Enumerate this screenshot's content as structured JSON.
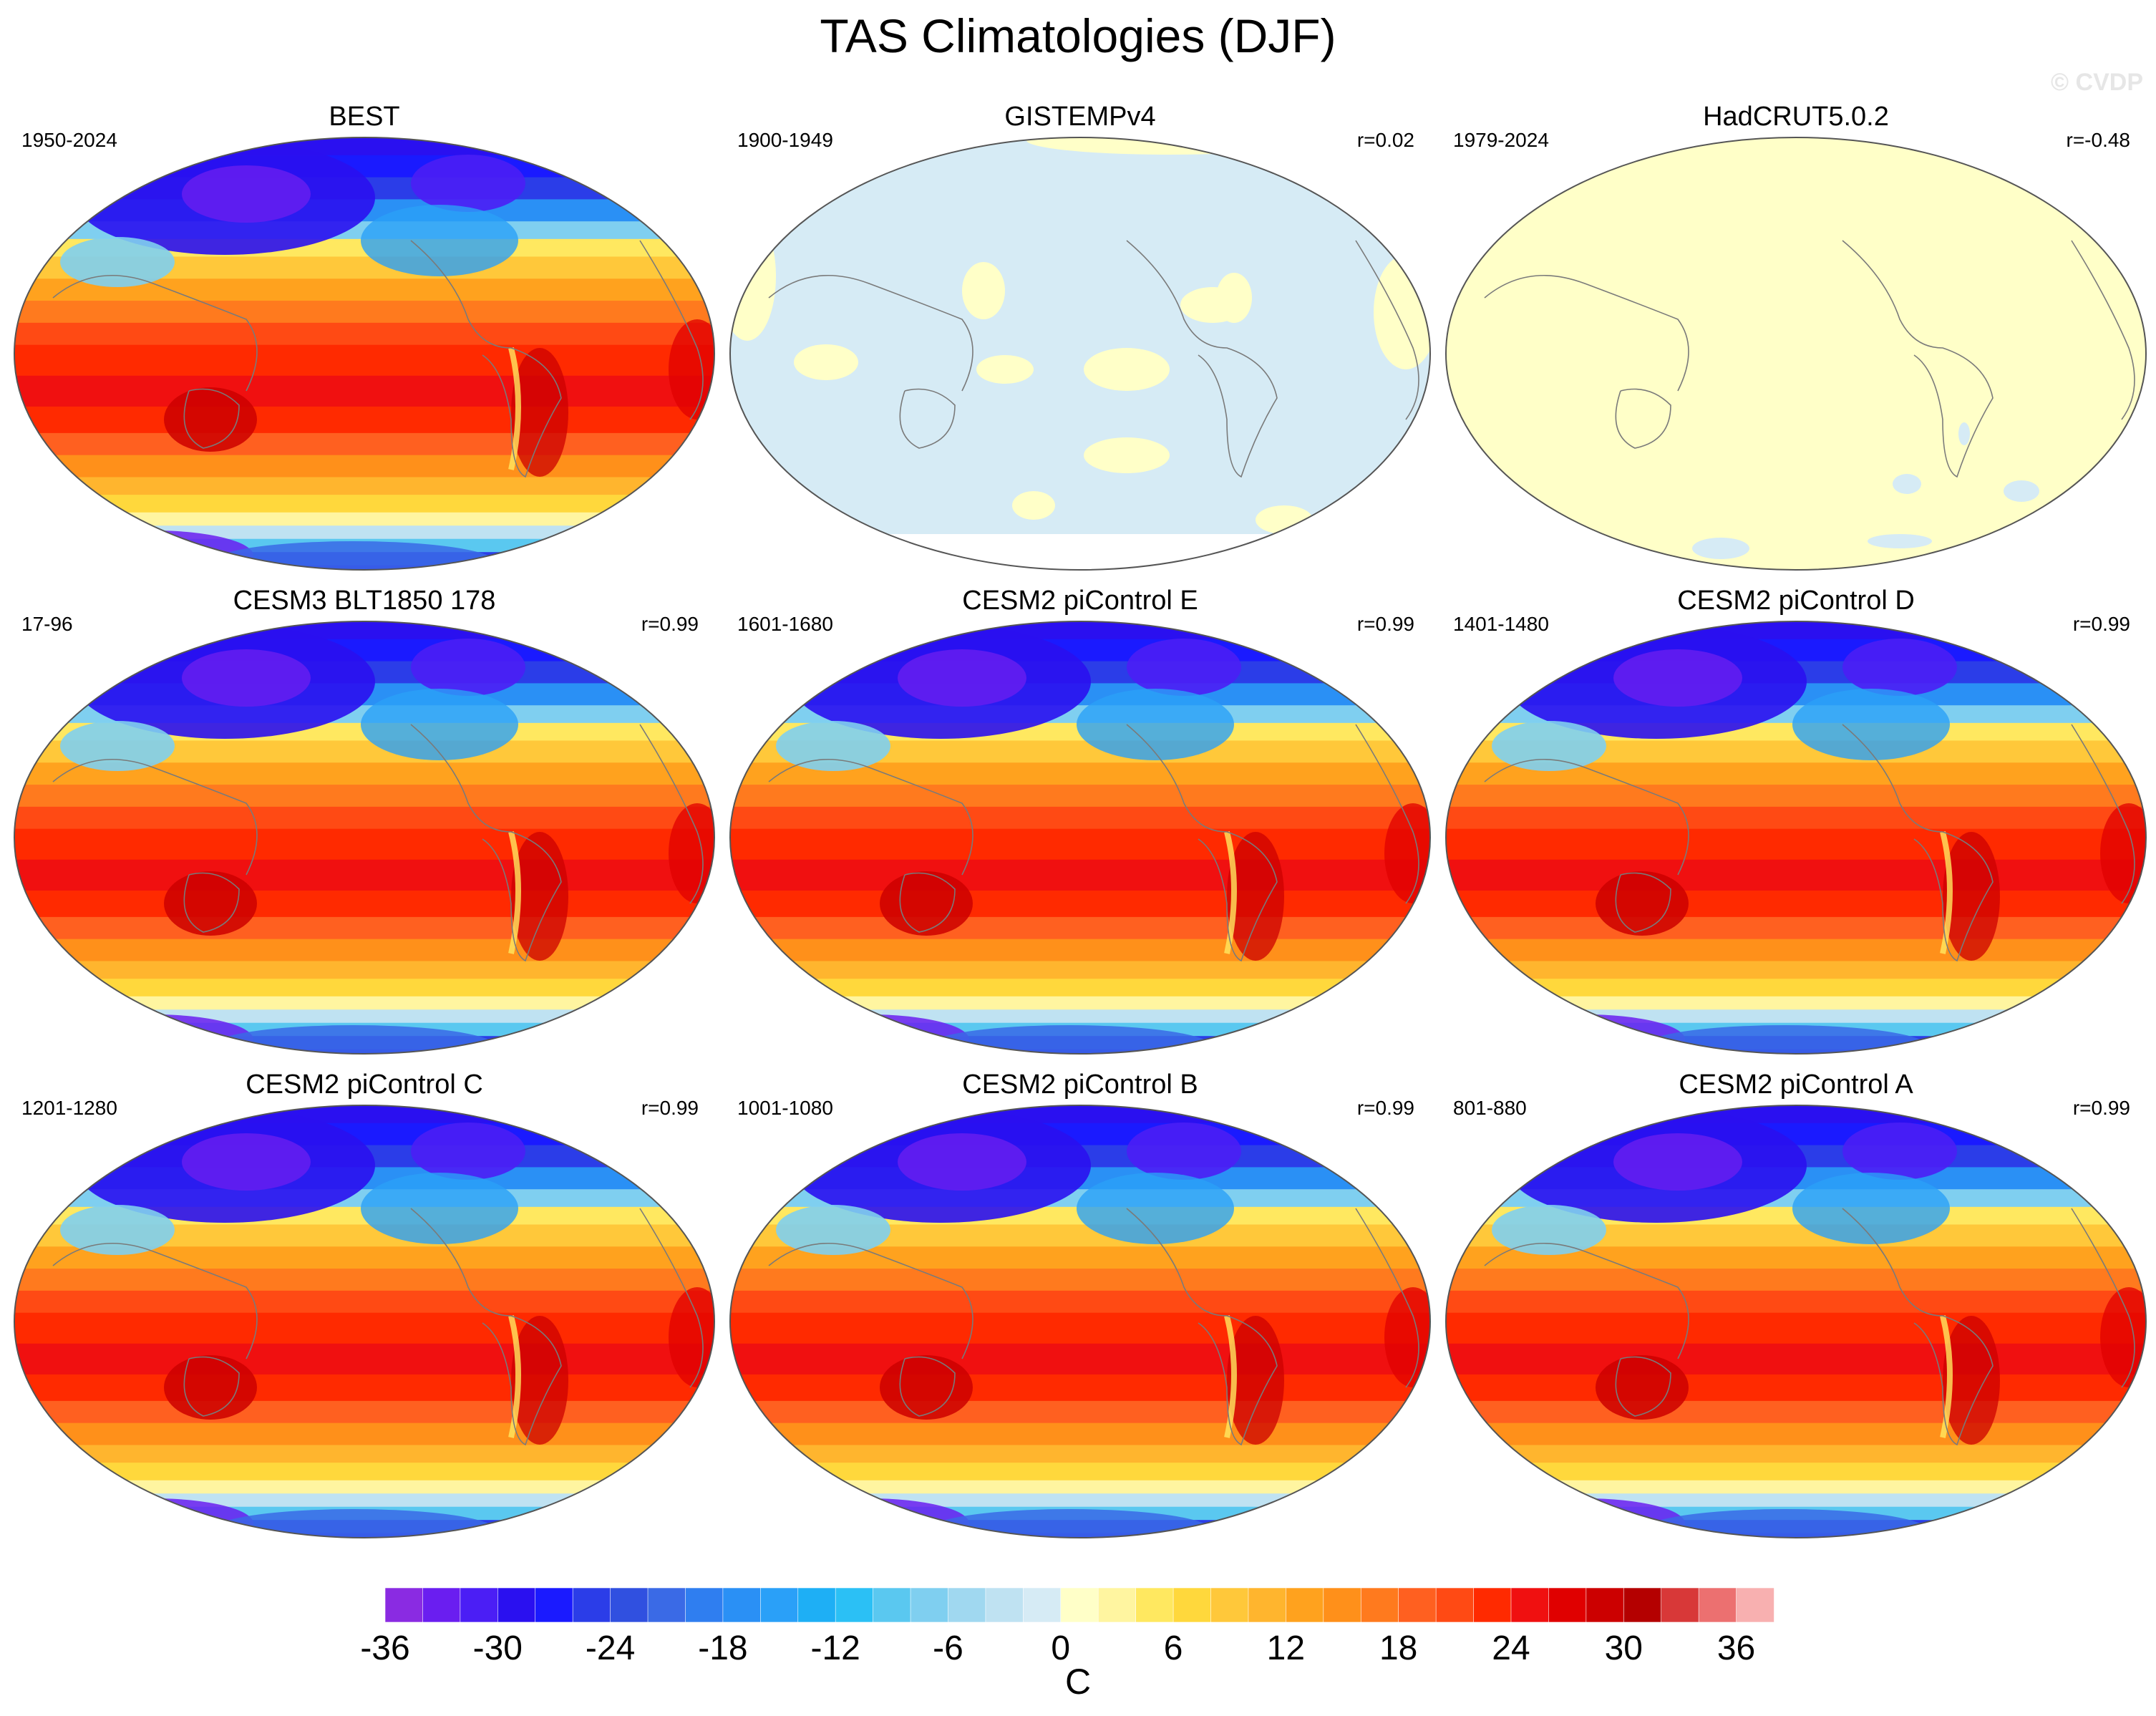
{
  "title": "TAS Climatologies (DJF)",
  "watermark": "© CVDP",
  "panels": [
    {
      "title": "BEST",
      "period": "1950-2024",
      "r": "",
      "field": "obs_best"
    },
    {
      "title": "GISTEMPv4",
      "period": "1900-1949",
      "r": "r=0.02",
      "field": "near_zero_light_blue"
    },
    {
      "title": "HadCRUT5.0.2",
      "period": "1979-2024",
      "r": "r=-0.48",
      "field": "near_zero_yellow"
    },
    {
      "title": "CESM3 BLT1850 178",
      "period": "17-96",
      "r": "r=0.99",
      "field": "model"
    },
    {
      "title": "CESM2 piControl E",
      "period": "1601-1680",
      "r": "r=0.99",
      "field": "model"
    },
    {
      "title": "CESM2 piControl D",
      "period": "1401-1480",
      "r": "r=0.99",
      "field": "model"
    },
    {
      "title": "CESM2 piControl C",
      "period": "1201-1280",
      "r": "r=0.99",
      "field": "model"
    },
    {
      "title": "CESM2 piControl B",
      "period": "1001-1080",
      "r": "r=0.99",
      "field": "model"
    },
    {
      "title": "CESM2 piControl A",
      "period": "801-880",
      "r": "r=0.99",
      "field": "model"
    }
  ],
  "colorbar": {
    "label": "C",
    "tick_labels": [
      "-36",
      "-30",
      "-24",
      "-18",
      "-12",
      "-6",
      "0",
      "6",
      "12",
      "18",
      "24",
      "30",
      "36"
    ],
    "colors": [
      "#8a2be2",
      "#6a1ef0",
      "#4b1ef5",
      "#2a10f0",
      "#1a1aff",
      "#2b3de8",
      "#3050e0",
      "#3a6ae6",
      "#2f7ef0",
      "#2a90f5",
      "#2aa0f8",
      "#1eaff5",
      "#2bc0f5",
      "#5ac8f0",
      "#7fcff0",
      "#a0d8f0",
      "#bfe2f2",
      "#d6ebf5",
      "#ffffc8",
      "#fff5a0",
      "#ffe860",
      "#ffd83c",
      "#ffc83a",
      "#ffb52e",
      "#ffa21e",
      "#ff901a",
      "#ff7a1e",
      "#ff6020",
      "#ff4a14",
      "#ff2a00",
      "#f01010",
      "#e00000",
      "#cc0000",
      "#b40000",
      "#d83838",
      "#ec7070",
      "#f8b0b0"
    ]
  }
}
